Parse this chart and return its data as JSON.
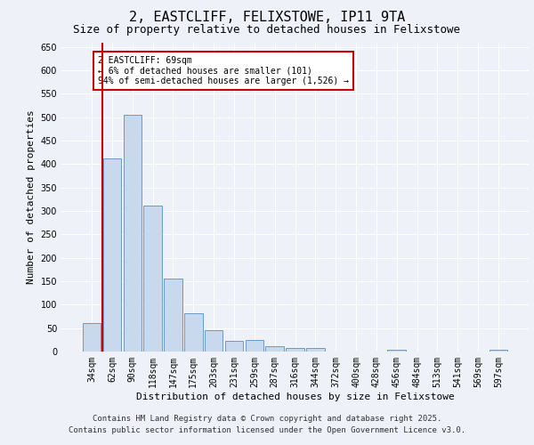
{
  "title1": "2, EASTCLIFF, FELIXSTOWE, IP11 9TA",
  "title2": "Size of property relative to detached houses in Felixstowe",
  "xlabel": "Distribution of detached houses by size in Felixstowe",
  "ylabel": "Number of detached properties",
  "categories": [
    "34sqm",
    "62sqm",
    "90sqm",
    "118sqm",
    "147sqm",
    "175sqm",
    "203sqm",
    "231sqm",
    "259sqm",
    "287sqm",
    "316sqm",
    "344sqm",
    "372sqm",
    "400sqm",
    "428sqm",
    "456sqm",
    "484sqm",
    "513sqm",
    "541sqm",
    "569sqm",
    "597sqm"
  ],
  "values": [
    60,
    412,
    506,
    312,
    155,
    82,
    46,
    22,
    24,
    11,
    8,
    7,
    0,
    0,
    0,
    3,
    0,
    0,
    0,
    0,
    4
  ],
  "bar_color": "#c9d9ed",
  "bar_edge_color": "#5b8dc0",
  "vline_x_idx": 1,
  "vline_color": "#cc0000",
  "ylim": [
    0,
    660
  ],
  "yticks": [
    0,
    50,
    100,
    150,
    200,
    250,
    300,
    350,
    400,
    450,
    500,
    550,
    600,
    650
  ],
  "annotation_text": "2 EASTCLIFF: 69sqm\n← 6% of detached houses are smaller (101)\n94% of semi-detached houses are larger (1,526) →",
  "annotation_box_color": "#ffffff",
  "annotation_box_edge": "#cc0000",
  "footer1": "Contains HM Land Registry data © Crown copyright and database right 2025.",
  "footer2": "Contains public sector information licensed under the Open Government Licence v3.0.",
  "bg_color": "#eef2f8",
  "plot_bg_color": "#eef2f8",
  "grid_color": "#ffffff",
  "title_fontsize": 11,
  "subtitle_fontsize": 9,
  "axis_label_fontsize": 8,
  "tick_fontsize": 7,
  "footer_fontsize": 6.5
}
